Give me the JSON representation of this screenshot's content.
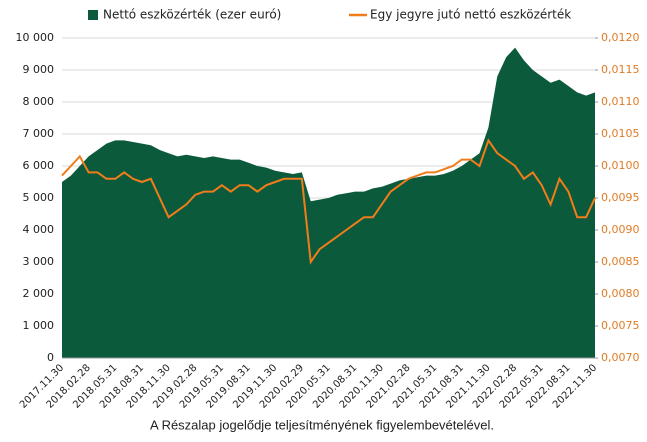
{
  "chart_data": {
    "type": "area-line",
    "caption": "A Részalap jogelődje teljesítményének figyelembevételével.",
    "categories": [
      "2017.11.30",
      null,
      null,
      "2018.02.28",
      null,
      null,
      "2018.05.31",
      null,
      null,
      "2018.08.31",
      null,
      null,
      "2018.11.30",
      null,
      null,
      "2019.02.28",
      null,
      null,
      "2019.05.31",
      null,
      null,
      "2019.08.31",
      null,
      null,
      "2019.11.30",
      null,
      null,
      "2020.02.29",
      null,
      null,
      "2020.05.31",
      null,
      null,
      "2020.08.31",
      null,
      null,
      "2020.11.30",
      null,
      null,
      "2021.02.28",
      null,
      null,
      "2021.05.31",
      null,
      null,
      "2021.08.31",
      null,
      null,
      "2021.11.30",
      null,
      null,
      "2022.02.28",
      null,
      null,
      "2022.05.31",
      null,
      null,
      "2022.08.31",
      null,
      null,
      "2022.11.30"
    ],
    "series": [
      {
        "name": "Nettó eszközérték (ezer euró)",
        "color": "#0b5a3c",
        "kind": "area",
        "axis": "y",
        "values": [
          5500,
          5700,
          6000,
          6300,
          6500,
          6700,
          6800,
          6800,
          6750,
          6700,
          6650,
          6500,
          6400,
          6300,
          6350,
          6300,
          6250,
          6300,
          6250,
          6200,
          6200,
          6100,
          6000,
          5950,
          5850,
          5800,
          5750,
          5800,
          4900,
          4950,
          5000,
          5100,
          5150,
          5200,
          5200,
          5300,
          5350,
          5450,
          5550,
          5600,
          5650,
          5700,
          5700,
          5750,
          5850,
          6000,
          6200,
          6400,
          7200,
          8800,
          9400,
          9700,
          9300,
          9000,
          8800,
          8600,
          8700,
          8500,
          8300,
          8200,
          8300
        ]
      },
      {
        "name": "Egy jegyre jutó nettó eszközérték",
        "color": "#f07c1a",
        "kind": "line",
        "axis": "y2",
        "values": [
          0.00985,
          0.01,
          0.01015,
          0.0099,
          0.0099,
          0.0098,
          0.0098,
          0.0099,
          0.0098,
          0.00975,
          0.0098,
          0.0095,
          0.0092,
          0.0093,
          0.0094,
          0.00955,
          0.0096,
          0.0096,
          0.0097,
          0.0096,
          0.0097,
          0.0097,
          0.0096,
          0.0097,
          0.00975,
          0.0098,
          0.0098,
          0.0098,
          0.0085,
          0.0087,
          0.0088,
          0.0089,
          0.009,
          0.0091,
          0.0092,
          0.0092,
          0.0094,
          0.0096,
          0.0097,
          0.0098,
          0.00985,
          0.0099,
          0.0099,
          0.00995,
          0.01,
          0.0101,
          0.0101,
          0.01,
          0.0104,
          0.0102,
          0.0101,
          0.01,
          0.0098,
          0.0099,
          0.0097,
          0.0094,
          0.0098,
          0.0096,
          0.0092,
          0.0092,
          0.0095
        ]
      }
    ],
    "ylim": [
      0,
      10000
    ],
    "yticks": [
      0,
      {
        "value": 1000,
        "label": "1 000"
      },
      {
        "value": 2000,
        "label": "2 000"
      },
      {
        "value": 3000,
        "label": "3 000"
      },
      {
        "value": 4000,
        "label": "4 000"
      },
      {
        "value": 5000,
        "label": "5 000"
      },
      {
        "value": 6000,
        "label": "6 000"
      },
      {
        "value": 7000,
        "label": "7 000"
      },
      {
        "value": 8000,
        "label": "8 000"
      },
      {
        "value": 9000,
        "label": "9 000"
      },
      {
        "value": 10000,
        "label": "10 000"
      }
    ],
    "y2lim": [
      0.007,
      0.012
    ],
    "y2ticks": [
      {
        "value": 0.007,
        "label": "0,0070"
      },
      {
        "value": 0.0075,
        "label": "0,0075"
      },
      {
        "value": 0.008,
        "label": "0,0080"
      },
      {
        "value": 0.0085,
        "label": "0,0085"
      },
      {
        "value": 0.009,
        "label": "0,0090"
      },
      {
        "value": 0.0095,
        "label": "0,0095"
      },
      {
        "value": 0.01,
        "label": "0,0100"
      },
      {
        "value": 0.0105,
        "label": "0,0105"
      },
      {
        "value": 0.011,
        "label": "0,0110"
      },
      {
        "value": 0.0115,
        "label": "0,0115"
      },
      {
        "value": 0.012,
        "label": "0,0120"
      }
    ],
    "grid": true,
    "legend": "top"
  }
}
